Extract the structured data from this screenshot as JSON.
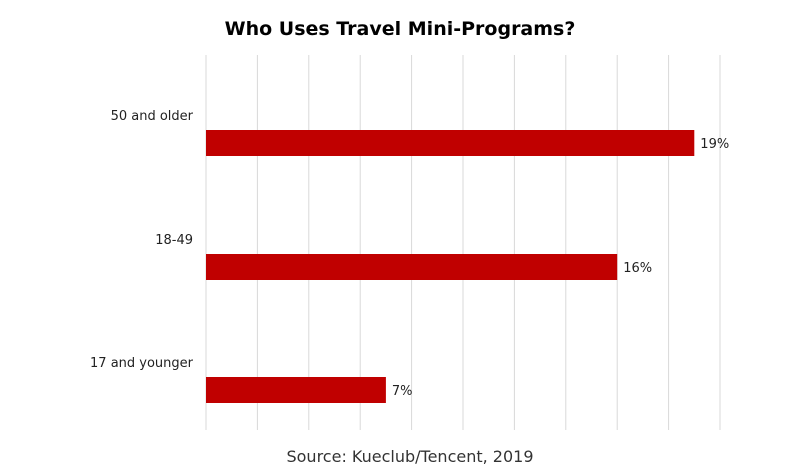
{
  "chart_data": {
    "type": "bar",
    "orientation": "horizontal",
    "title": "Who Uses Travel Mini-Programs?",
    "categories": [
      "50 and older",
      "18-49",
      "17 and younger"
    ],
    "values": [
      19,
      16,
      7
    ],
    "value_labels": [
      "19%",
      "16%",
      "7%"
    ],
    "xlim": [
      0,
      20
    ],
    "grid_step": 2,
    "grid": true,
    "bar_color": "#c00000",
    "xlabel": "",
    "ylabel": "",
    "source": "Source: Kueclub/Tencent, 2019"
  }
}
